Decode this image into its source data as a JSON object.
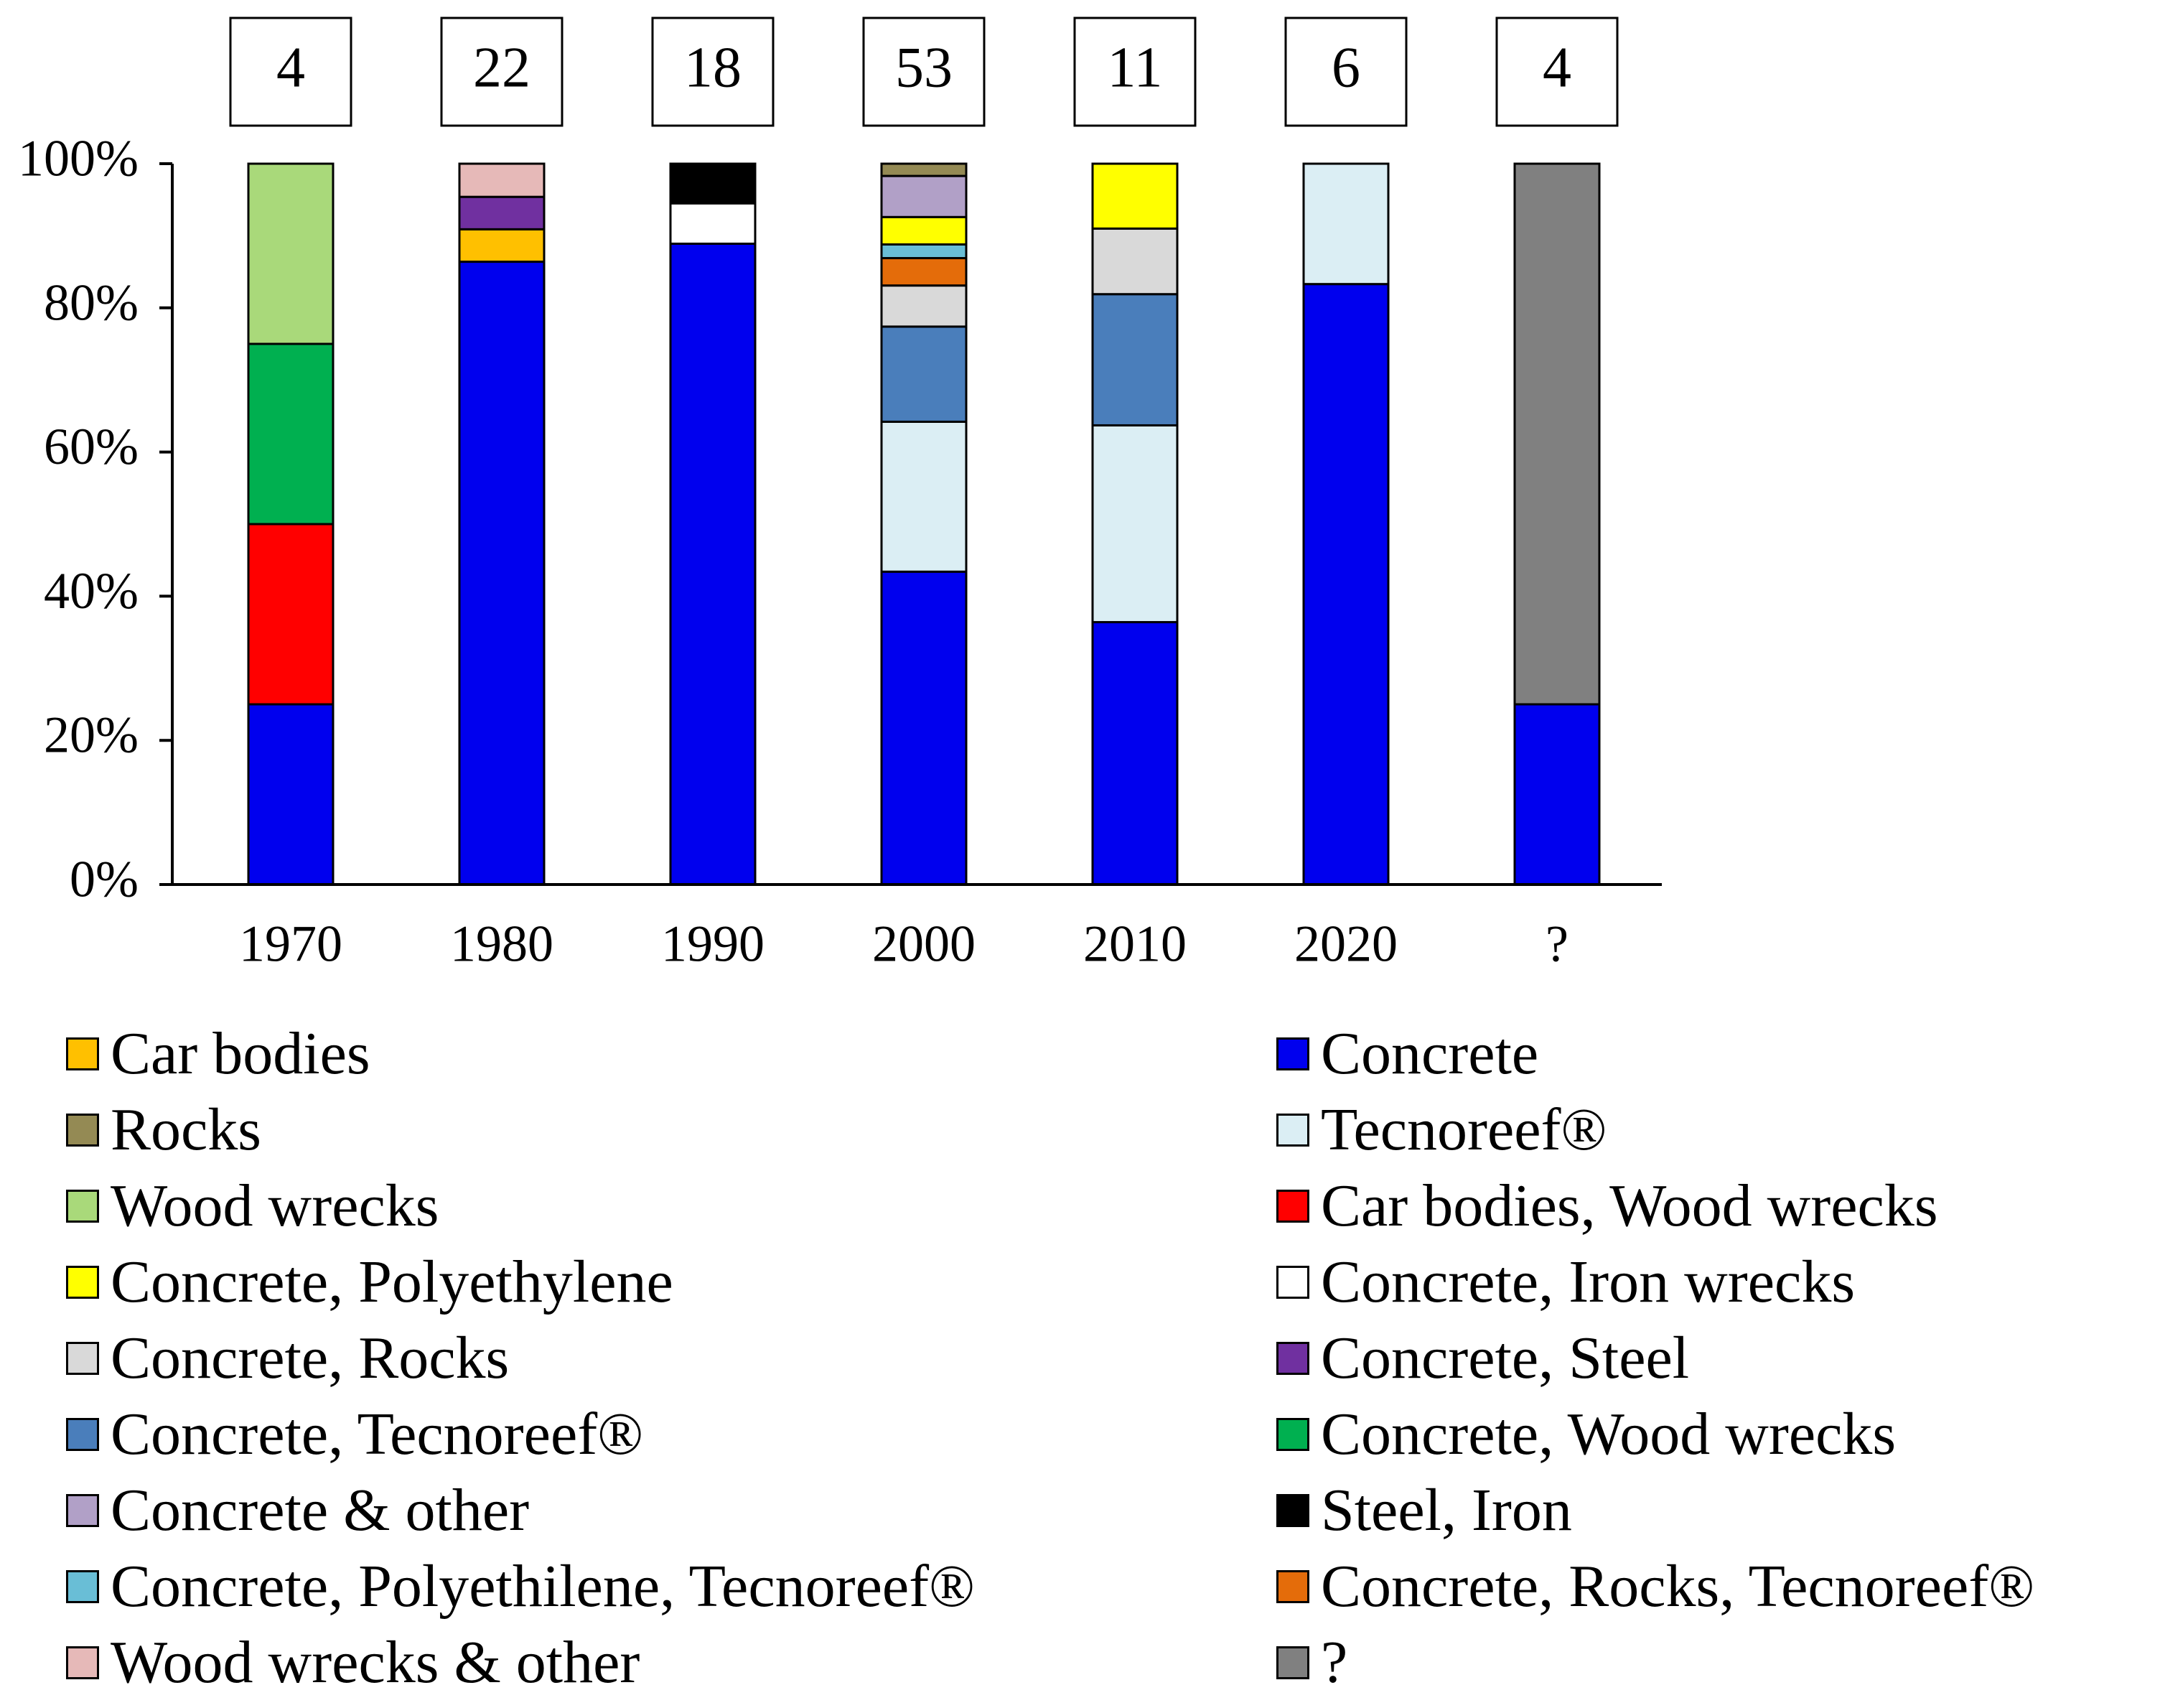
{
  "chart_data": {
    "type": "bar",
    "stacked": true,
    "percent": true,
    "categories": [
      "1970",
      "1980",
      "1990",
      "2000",
      "2010",
      "2020",
      "?"
    ],
    "counts": [
      "4",
      "22",
      "18",
      "53",
      "11",
      "6",
      "4"
    ],
    "ylim": [
      0,
      100
    ],
    "yticks": [
      "0%",
      "20%",
      "40%",
      "60%",
      "80%",
      "100%"
    ],
    "series": [
      {
        "name": "Concrete",
        "color": "#0000ee",
        "values": [
          25,
          86.4,
          88.9,
          43.4,
          36.4,
          83.3,
          25
        ]
      },
      {
        "name": "Car bodies, Wood wrecks",
        "color": "#ff0000",
        "values": [
          25,
          0,
          0,
          0,
          0,
          0,
          0
        ]
      },
      {
        "name": "Concrete, Wood wrecks",
        "color": "#00b050",
        "values": [
          25,
          0,
          0,
          0,
          0,
          0,
          0
        ]
      },
      {
        "name": "Wood wrecks",
        "color": "#a9d97a",
        "values": [
          25,
          0,
          0,
          0,
          0,
          0,
          0
        ]
      },
      {
        "name": "Tecnoreef®",
        "color": "#dbeef4",
        "values": [
          0,
          0,
          0,
          20.8,
          27.3,
          16.7,
          0
        ]
      },
      {
        "name": "Concrete, Tecnoreef®",
        "color": "#4a7ebb",
        "values": [
          0,
          0,
          0,
          13.2,
          18.2,
          0,
          0
        ]
      },
      {
        "name": "Concrete, Rocks",
        "color": "#d9d9d9",
        "values": [
          0,
          0,
          0,
          5.7,
          9.1,
          0,
          0
        ]
      },
      {
        "name": "Concrete, Rocks, Tecnoreef®",
        "color": "#e46c0a",
        "values": [
          0,
          0,
          0,
          3.8,
          0,
          0,
          0
        ]
      },
      {
        "name": "Concrete,  Polyethilene, Tecnoreef®",
        "color": "#69bed6",
        "values": [
          0,
          0,
          0,
          1.9,
          0,
          0,
          0
        ]
      },
      {
        "name": "Car bodies",
        "color": "#ffc000",
        "values": [
          0,
          4.5,
          0,
          0,
          0,
          0,
          0
        ]
      },
      {
        "name": "Concrete, Steel",
        "color": "#7030a0",
        "values": [
          0,
          4.5,
          0,
          0,
          0,
          0,
          0
        ]
      },
      {
        "name": "Wood wrecks & other",
        "color": "#e6b9b8",
        "values": [
          0,
          4.6,
          0,
          0,
          0,
          0,
          0
        ]
      },
      {
        "name": "Concrete, Iron wrecks",
        "color": "#ffffff",
        "values": [
          0,
          0,
          5.6,
          0,
          0,
          0,
          0
        ]
      },
      {
        "name": "Steel, Iron",
        "color": "#000000",
        "values": [
          0,
          0,
          5.5,
          0,
          0,
          0,
          0
        ]
      },
      {
        "name": "Concrete, Polyethylene",
        "color": "#ffff00",
        "values": [
          0,
          0,
          0,
          3.8,
          9,
          0,
          0
        ]
      },
      {
        "name": "Concrete & other",
        "color": "#b1a0c7",
        "values": [
          0,
          0,
          0,
          5.7,
          0,
          0,
          0
        ]
      },
      {
        "name": "Rocks",
        "color": "#948a54",
        "values": [
          0,
          0,
          0,
          1.7,
          0,
          0,
          0
        ]
      },
      {
        "name": "?",
        "color": "#808080",
        "values": [
          0,
          0,
          0,
          0,
          0,
          0,
          75
        ]
      }
    ],
    "legend": {
      "left": [
        "Car bodies",
        "Rocks",
        "Wood wrecks",
        "Concrete, Polyethylene",
        "Concrete, Rocks",
        "Concrete, Tecnoreef®",
        "Concrete & other",
        "Concrete,  Polyethilene, Tecnoreef®",
        "Wood wrecks & other"
      ],
      "right": [
        "Concrete",
        "Tecnoreef®",
        "Car bodies, Wood wrecks",
        "Concrete, Iron wrecks",
        "Concrete, Steel",
        "Concrete, Wood wrecks",
        "Steel, Iron",
        "Concrete, Rocks, Tecnoreef®",
        "?"
      ]
    }
  }
}
